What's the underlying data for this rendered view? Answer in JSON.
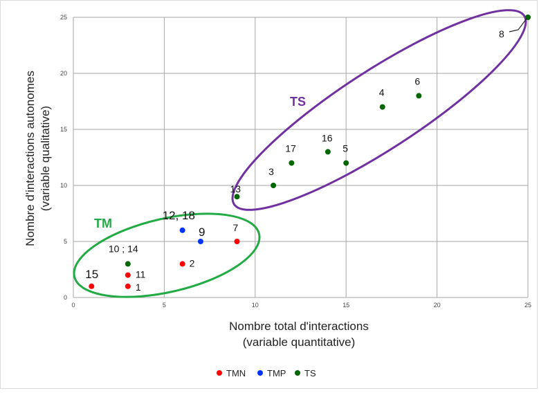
{
  "chart_data": {
    "type": "scatter",
    "title": "",
    "xlabel": [
      "Nombre total d'interactions",
      "(variable quantitative)"
    ],
    "ylabel": [
      "Nombre d'interactions  autonomes",
      "(variable qualitative)"
    ],
    "xlim": [
      0,
      25
    ],
    "ylim": [
      0,
      25
    ],
    "xticks": [
      0,
      5,
      10,
      15,
      20,
      25
    ],
    "yticks": [
      0,
      5,
      10,
      15,
      20,
      25
    ],
    "grid": true,
    "legend_position": "bottom",
    "series": [
      {
        "name": "TMN",
        "color": "#ff0000",
        "points": [
          {
            "x": 1,
            "y": 1,
            "label": "15"
          },
          {
            "x": 3,
            "y": 1,
            "label": "1"
          },
          {
            "x": 3,
            "y": 2,
            "label": "11"
          },
          {
            "x": 6,
            "y": 3,
            "label": "2"
          },
          {
            "x": 9,
            "y": 5,
            "label": "7"
          }
        ]
      },
      {
        "name": "TMP",
        "color": "#0033ff",
        "points": [
          {
            "x": 6,
            "y": 6,
            "label": "12, 18"
          },
          {
            "x": 7,
            "y": 5,
            "label": "9"
          }
        ]
      },
      {
        "name": "TS",
        "color": "#006600",
        "points": [
          {
            "x": 3,
            "y": 3,
            "label": "10 ; 14"
          },
          {
            "x": 9,
            "y": 9,
            "label": "13"
          },
          {
            "x": 11,
            "y": 10,
            "label": "3"
          },
          {
            "x": 12,
            "y": 12,
            "label": "17"
          },
          {
            "x": 14,
            "y": 13,
            "label": "16"
          },
          {
            "x": 15,
            "y": 12,
            "label": "5"
          },
          {
            "x": 17,
            "y": 17,
            "label": "4"
          },
          {
            "x": 19,
            "y": 18,
            "label": "6"
          },
          {
            "x": 25,
            "y": 25,
            "label": "8"
          }
        ]
      }
    ],
    "annotations": [
      {
        "text": "TM",
        "color": "#22aa44"
      },
      {
        "text": "TS",
        "color": "#7030a0"
      }
    ]
  }
}
